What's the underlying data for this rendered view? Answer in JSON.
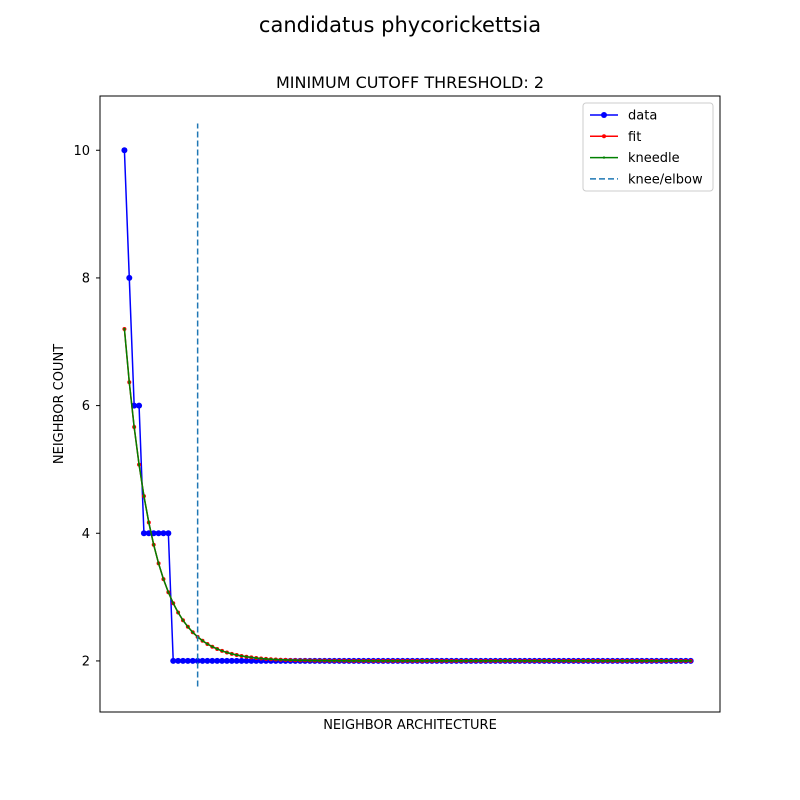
{
  "chart_data": {
    "type": "line",
    "suptitle": "candidatus phycorickettsia",
    "title": "MINIMUM CUTOFF THRESHOLD: 2",
    "xlabel": "NEIGHBOR ARCHITECTURE",
    "ylabel": "NEIGHBOR COUNT",
    "x_ticks_visible": false,
    "xlim": [
      -5,
      122
    ],
    "ylim": [
      1.2,
      10.85
    ],
    "y_ticks": [
      2,
      4,
      6,
      8,
      10
    ],
    "grid": false,
    "legend_position": "top-right",
    "n_points": 117,
    "knee_x": 15,
    "knee_line_ylim": [
      1.6,
      10.42
    ],
    "series": [
      {
        "name": "data",
        "color": "#0000ff",
        "marker_size": 3,
        "step_segments": [
          {
            "x_from": 0,
            "x_to": 0,
            "y": 10
          },
          {
            "x_from": 1,
            "x_to": 1,
            "y": 8
          },
          {
            "x_from": 2,
            "x_to": 2,
            "y": 6
          },
          {
            "x_from": 3,
            "x_to": 3,
            "y": 6
          },
          {
            "x_from": 4,
            "x_to": 9,
            "y": 4
          },
          {
            "x_from": 10,
            "x_to": 116,
            "y": 2
          }
        ]
      },
      {
        "name": "fit",
        "color": "#ff0000",
        "marker_size": 2,
        "model": {
          "form": "exponential_decay",
          "asymptote": 2,
          "initial": 7.2,
          "decay_rate": 0.175
        }
      },
      {
        "name": "kneedle",
        "color": "#008000",
        "marker_size": 1.2,
        "model": {
          "form": "exponential_decay",
          "asymptote": 2,
          "initial": 7.2,
          "decay_rate": 0.175
        }
      },
      {
        "name": "knee/elbow",
        "color": "#1f77b4",
        "style": "dashed"
      }
    ]
  }
}
